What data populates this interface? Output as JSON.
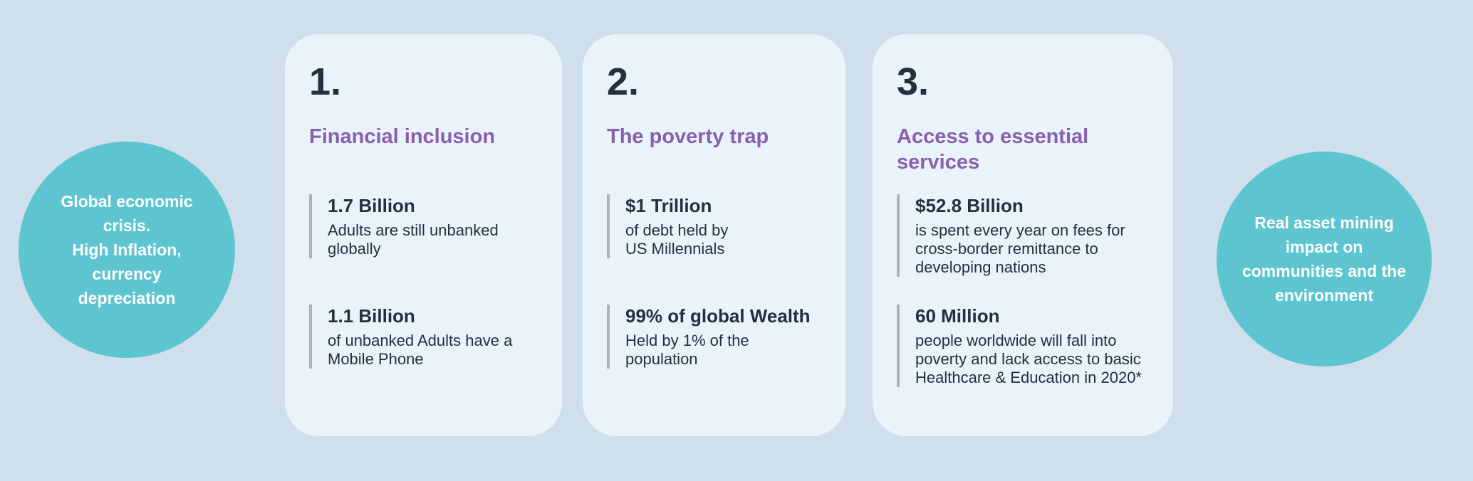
{
  "palette": {
    "background": "#cfe0ec",
    "card_background": "#e9f3fa",
    "bubble_teal": "#5cc5d0",
    "title_purple": "#8a5fae",
    "text_dark": "#22313f",
    "stat_bar_gray": "#a9b3bb",
    "bubble_text_white": "#ffffff"
  },
  "left_circle": {
    "text": "Global economic\ncrisis.\nHigh Inflation,\ncurrency\ndepreciation"
  },
  "right_circle": {
    "text": "Real asset  mining\nimpact on\ncommunities and the\nenvironment"
  },
  "cards": [
    {
      "number": "1.",
      "title": "Financial inclusion",
      "stats": [
        {
          "value": "1.7 Billion",
          "description": "Adults are still unbanked\nglobally"
        },
        {
          "value": "1.1 Billion",
          "description": "of unbanked Adults have a\nMobile Phone"
        }
      ]
    },
    {
      "number": "2.",
      "title": "The poverty trap",
      "stats": [
        {
          "value": "$1 Trillion",
          "description": "of debt held by\nUS Millennials"
        },
        {
          "value": "99% of global Wealth",
          "description": "Held by 1% of the\npopulation"
        }
      ]
    },
    {
      "number": "3.",
      "title": "Access to essential services",
      "stats": [
        {
          "value": "$52.8 Billion",
          "description": "is spent every year on fees for\ncross-border remittance to\ndeveloping nations"
        },
        {
          "value": "60 Million",
          "description": "people worldwide will fall into\npoverty and lack access to basic\nHealthcare & Education in 2020*"
        }
      ]
    }
  ]
}
